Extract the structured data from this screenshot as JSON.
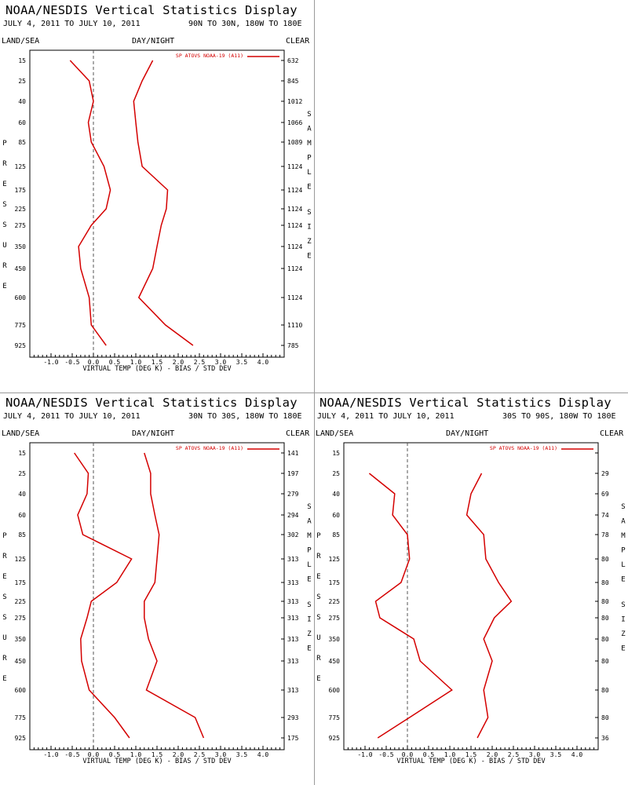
{
  "page": {
    "title": "NOAA/NESDIS Vertical Statistics Display"
  },
  "chart_data": [
    {
      "type": "line",
      "title": "NOAA/NESDIS Vertical Statistics Display",
      "date_range": "JULY 4, 2011 TO JULY 10, 2011",
      "region": "90N TO 30N, 180W TO 180E",
      "surface": "LAND/SEA",
      "time_of_day": "DAY/NIGHT",
      "sky": "CLEAR",
      "xlabel": "VIRTUAL TEMP (DEG K) - BIAS / STD DEV",
      "ylabel": "PRESSURE",
      "y2label": "SAMPLE SIZE",
      "xlim": [
        -1.5,
        4.5
      ],
      "xticks": [
        "-1.0",
        "-0.5",
        "0.0",
        "0.5",
        "1.0",
        "1.5",
        "2.0",
        "2.5",
        "3.0",
        "3.5",
        "4.0"
      ],
      "pressure_levels": [
        "15",
        "25",
        "40",
        "60",
        "85",
        "125",
        "175",
        "225",
        "275",
        "350",
        "450",
        "600",
        "775",
        "925"
      ],
      "sample_size": [
        "632",
        "845",
        "1012",
        "1066",
        "1089",
        "1124",
        "1124",
        "1124",
        "1124",
        "1124",
        "1124",
        "1124",
        "1110",
        "785"
      ],
      "color": "#d40000",
      "series": [
        {
          "name": "SP ATOVS NOAA-19 (A11)",
          "statistic": "bias",
          "values": [
            -0.55,
            -0.1,
            0.0,
            -0.12,
            -0.05,
            0.25,
            0.4,
            0.3,
            -0.05,
            -0.35,
            -0.3,
            -0.1,
            -0.05,
            0.3
          ]
        },
        {
          "statistic": "std_dev",
          "values": [
            1.4,
            1.15,
            0.95,
            1.0,
            1.05,
            1.15,
            1.75,
            1.72,
            1.6,
            1.5,
            1.4,
            1.07,
            1.7,
            2.35
          ]
        }
      ]
    },
    {
      "type": "line",
      "title": "NOAA/NESDIS Vertical Statistics Display",
      "date_range": "JULY 4, 2011 TO JULY 10, 2011",
      "region": "30N TO 30S, 180W TO 180E",
      "surface": "LAND/SEA",
      "time_of_day": "DAY/NIGHT",
      "sky": "CLEAR",
      "xlabel": "VIRTUAL TEMP (DEG K) - BIAS / STD DEV",
      "ylabel": "PRESSURE",
      "y2label": "SAMPLE SIZE",
      "xlim": [
        -1.5,
        4.5
      ],
      "xticks": [
        "-1.0",
        "-0.5",
        "0.0",
        "0.5",
        "1.0",
        "1.5",
        "2.0",
        "2.5",
        "3.0",
        "3.5",
        "4.0"
      ],
      "pressure_levels": [
        "15",
        "25",
        "40",
        "60",
        "85",
        "125",
        "175",
        "225",
        "275",
        "350",
        "450",
        "600",
        "775",
        "925"
      ],
      "sample_size": [
        "141",
        "197",
        "279",
        "294",
        "302",
        "313",
        "313",
        "313",
        "313",
        "313",
        "313",
        "313",
        "293",
        "175"
      ],
      "color": "#d40000",
      "series": [
        {
          "name": "SP ATOVS NOAA-19 (A11)",
          "statistic": "bias",
          "values": [
            -0.45,
            -0.12,
            -0.15,
            -0.37,
            -0.25,
            0.9,
            0.55,
            -0.05,
            -0.15,
            -0.3,
            -0.28,
            -0.1,
            0.5,
            0.85
          ]
        },
        {
          "statistic": "std_dev",
          "values": [
            1.2,
            1.35,
            1.35,
            1.45,
            1.55,
            1.5,
            1.45,
            1.2,
            1.2,
            1.3,
            1.5,
            1.25,
            2.4,
            2.6
          ]
        }
      ]
    },
    {
      "type": "line",
      "title": "NOAA/NESDIS Vertical Statistics Display",
      "date_range": "JULY 4, 2011 TO JULY 10, 2011",
      "region": "30S TO 90S, 180W TO 180E",
      "surface": "LAND/SEA",
      "time_of_day": "DAY/NIGHT",
      "sky": "CLEAR",
      "xlabel": "VIRTUAL TEMP (DEG K) - BIAS / STD DEV",
      "ylabel": "PRESSURE",
      "y2label": "SAMPLE SIZE",
      "xlim": [
        -1.5,
        4.5
      ],
      "xticks": [
        "-1.0",
        "-0.5",
        "0.0",
        "0.5",
        "1.0",
        "1.5",
        "2.0",
        "2.5",
        "3.0",
        "3.5",
        "4.0"
      ],
      "pressure_levels": [
        "15",
        "25",
        "40",
        "60",
        "85",
        "125",
        "175",
        "225",
        "275",
        "350",
        "450",
        "600",
        "775",
        "925"
      ],
      "sample_size": [
        "",
        "29",
        "69",
        "74",
        "78",
        "80",
        "80",
        "80",
        "80",
        "80",
        "80",
        "80",
        "80",
        "36"
      ],
      "color": "#d40000",
      "series": [
        {
          "name": "SP ATOVS NOAA-19 (A11)",
          "statistic": "bias",
          "values": [
            null,
            -0.9,
            -0.3,
            -0.35,
            0.0,
            0.05,
            -0.15,
            -0.75,
            -0.65,
            0.15,
            0.3,
            1.05,
            0.05,
            -0.7
          ]
        },
        {
          "statistic": "std_dev",
          "values": [
            null,
            1.75,
            1.5,
            1.4,
            1.8,
            1.85,
            2.15,
            2.45,
            2.05,
            1.8,
            2.0,
            1.8,
            1.9,
            1.65
          ]
        }
      ]
    }
  ]
}
